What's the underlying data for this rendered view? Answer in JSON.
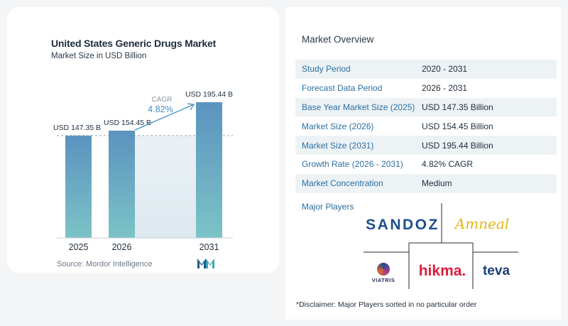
{
  "chart_data": {
    "type": "bar",
    "title": "United States Generic Drugs Market",
    "subtitle": "Market Size in USD Billion",
    "categories": [
      "2025",
      "2026",
      "2031"
    ],
    "values": [
      147.35,
      154.45,
      195.44
    ],
    "value_labels": [
      "USD 147.35 B",
      "USD 154.45 B",
      "USD 195.44 B"
    ],
    "cagr_label": "CAGR",
    "cagr_value": "4.82%",
    "colors": {
      "bar_top": "#5b93bf",
      "bar_bottom": "#7cc3c7",
      "band": "#e6eef4",
      "arrow": "#5b9fcf"
    }
  },
  "source": "Source: Mordor Intelligence",
  "overview": {
    "title": "Market Overview",
    "rows": [
      {
        "key": "Study Period",
        "value": "2020 - 2031"
      },
      {
        "key": "Forecast Data Period",
        "value": "2026 - 2031"
      },
      {
        "key": "Base Year Market Size (2025)",
        "value": "USD 147.35 Billion"
      },
      {
        "key": "Market Size (2026)",
        "value": "USD 154.45 Billion"
      },
      {
        "key": "Market Size (2031)",
        "value": "USD 195.44 Billion"
      },
      {
        "key": "Growth Rate (2026 - 2031)",
        "value": "4.82% CAGR"
      },
      {
        "key": "Market Concentration",
        "value": "Medium"
      }
    ],
    "players_label": "Major Players",
    "players": {
      "sandoz": "SANDOZ",
      "amneal": "Amneal",
      "viatris": "VIATRIS",
      "hikma": "hikma.",
      "teva": "teva"
    },
    "disclaimer": "*Disclaimer: Major Players sorted in no particular order"
  }
}
